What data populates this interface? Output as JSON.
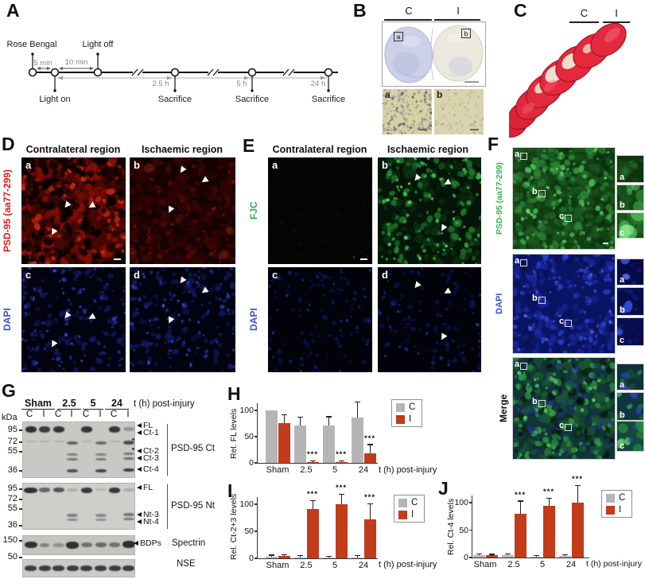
{
  "panelA": {
    "label": "A",
    "rose_bengal": "Rose Bengal",
    "light_off": "Light off",
    "light_on": "Light on",
    "t5min": "5 min",
    "t10min": "10 min",
    "t25h": "2.5 h",
    "t5h": "5 h",
    "t24h": "24 h",
    "sacrifices": [
      "Sacrifice",
      "Sacrifice",
      "Sacrifice"
    ]
  },
  "panelB": {
    "label": "B",
    "contra": "C",
    "ischemic": "I",
    "box_a": "a",
    "box_b": "b",
    "inset_a": "a",
    "inset_b": "b"
  },
  "panelC": {
    "label": "C",
    "contra": "C",
    "ischemic": "I"
  },
  "panelD": {
    "label": "D",
    "header_left": "Contralateral region",
    "header_right": "Ischaemic region",
    "stain": "PSD-95 (aa77-299)",
    "stain_color": "#e11c1c",
    "counterstain": "DAPI",
    "counterstain_color": "#3a52c8",
    "tags": [
      "a",
      "b",
      "c",
      "d"
    ]
  },
  "panelE": {
    "label": "E",
    "header_left": "Contralateral region",
    "header_right": "Ischaemic region",
    "stain": "FJC",
    "stain_color": "#2fae44",
    "counterstain": "DAPI",
    "counterstain_color": "#3a52c8",
    "tags": [
      "a",
      "b",
      "c",
      "d"
    ]
  },
  "panelF": {
    "label": "F",
    "rows": [
      {
        "label": "PSD-95 (aa77-299)",
        "color": "#3bb54a",
        "tags": [
          "a",
          "b",
          "c"
        ]
      },
      {
        "label": "DAPI",
        "color": "#3a52c8",
        "tags": [
          "a",
          "b",
          "c"
        ]
      },
      {
        "label": "Merge",
        "color": "#111111",
        "tags": [
          "a",
          "b",
          "c"
        ]
      }
    ]
  },
  "panelG": {
    "label": "G",
    "groups": [
      "Sham",
      "2.5",
      "5",
      "24"
    ],
    "time_label": "t (h) post-injury",
    "lanes": [
      "C",
      "I",
      "C",
      "I",
      "C",
      "I",
      "C",
      "I"
    ],
    "kda": "kDa",
    "blots": [
      {
        "name": "PSD-95 Ct",
        "markers": [
          "95",
          "72",
          "55",
          "36"
        ],
        "bands": [
          "FL",
          "Ct-1",
          "Ct-2",
          "Ct-3",
          "Ct-4"
        ]
      },
      {
        "name": "PSD-95 Nt",
        "markers": [
          "95",
          "72",
          "55",
          "36"
        ],
        "bands": [
          "FL",
          "Nt-3",
          "Nt-4"
        ]
      },
      {
        "name": "Spectrin",
        "markers": [
          "150"
        ],
        "bands": [
          "BDPs"
        ]
      },
      {
        "name": "NSE",
        "markers": [
          "50"
        ],
        "bands": []
      }
    ]
  },
  "chart_data": [
    {
      "id": "H",
      "panel_label": "H",
      "type": "bar",
      "ylabel": "Rel. FL levels",
      "xlabel": "t (h) post-injury",
      "categories": [
        "Sham",
        "2.5",
        "5",
        "24"
      ],
      "yticks": [
        0,
        50,
        100
      ],
      "ylim": [
        0,
        115
      ],
      "legend": [
        {
          "name": "C",
          "color": "#b5b5b5"
        },
        {
          "name": "I",
          "color": "#c23b1b"
        }
      ],
      "series": [
        {
          "name": "C",
          "values": [
            100,
            72,
            72,
            87
          ],
          "errors": [
            0,
            14,
            15,
            28
          ]
        },
        {
          "name": "I",
          "values": [
            76,
            2,
            2,
            18
          ],
          "errors": [
            15,
            1,
            1,
            16
          ]
        }
      ],
      "significance": [
        "",
        "***",
        "***",
        "***"
      ]
    },
    {
      "id": "I",
      "panel_label": "I",
      "type": "bar",
      "ylabel": "Rel. Ct-2+3 levels",
      "xlabel": "t (h) post-injury",
      "categories": [
        "Sham",
        "2.5",
        "5",
        "24"
      ],
      "yticks": [
        0,
        50,
        100
      ],
      "ylim": [
        0,
        115
      ],
      "legend": [
        {
          "name": "C",
          "color": "#b5b5b5"
        },
        {
          "name": "I",
          "color": "#c23b1b"
        }
      ],
      "series": [
        {
          "name": "C",
          "values": [
            3,
            2,
            2,
            2
          ],
          "errors": [
            2,
            2,
            1,
            2
          ]
        },
        {
          "name": "I",
          "values": [
            4,
            91,
            100,
            72
          ],
          "errors": [
            2,
            15,
            17,
            28
          ]
        }
      ],
      "significance": [
        "",
        "***",
        "***",
        "***"
      ]
    },
    {
      "id": "J",
      "panel_label": "J",
      "type": "bar",
      "ylabel": "Rel. Ct-4 levels",
      "xlabel": "t (h) post-injury",
      "categories": [
        "Sham",
        "2.5",
        "5",
        "24"
      ],
      "yticks": [
        0,
        50,
        100
      ],
      "ylim": [
        0,
        115
      ],
      "legend": [
        {
          "name": "C",
          "color": "#b5b5b5"
        },
        {
          "name": "I",
          "color": "#c23b1b"
        }
      ],
      "series": [
        {
          "name": "C",
          "values": [
            4,
            4,
            2,
            3
          ],
          "errors": [
            2,
            2,
            1,
            1
          ]
        },
        {
          "name": "I",
          "values": [
            4,
            80,
            95,
            100
          ],
          "errors": [
            1,
            22,
            12,
            30
          ]
        }
      ],
      "significance": [
        "",
        "***",
        "***",
        "***"
      ]
    }
  ]
}
